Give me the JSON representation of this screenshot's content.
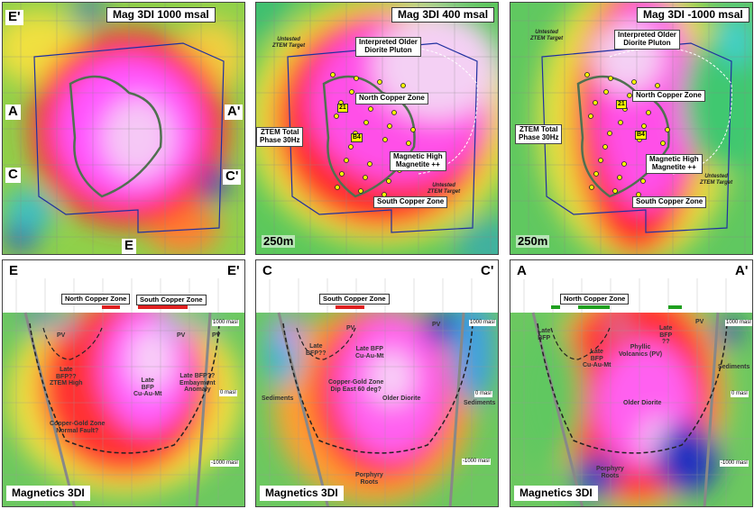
{
  "panels": [
    {
      "labels": [
        "Mag 3DI 1000 msal",
        "E'",
        "A",
        "A'",
        "C",
        "C'",
        "E"
      ]
    },
    {
      "labels": [
        "Mag 3DI 400 msal",
        [
          "Untested",
          "ZTEM Target"
        ],
        [
          "Interpreted Older",
          "Diorite Pluton"
        ],
        "North Copper Zone",
        [
          "ZTEM Total",
          "Phase 30Hz"
        ],
        [
          "Magnetic High",
          "Magnetite ++"
        ],
        [
          "Untested",
          "ZTEM Target"
        ],
        "South Copper Zone",
        "250m",
        "21",
        "B4"
      ]
    },
    {
      "labels": [
        "Mag 3DI -1000 msal",
        [
          "Untested",
          "ZTEM Target"
        ],
        [
          "Interpreted Older",
          "Diorite Pluton"
        ],
        "North Copper Zone",
        [
          "ZTEM Total",
          "Phase 30Hz"
        ],
        [
          "Magnetic High",
          "Magnetite ++"
        ],
        [
          "Untested",
          "ZTEM Target"
        ],
        "South Copper Zone",
        "250m",
        "21",
        "B4"
      ]
    },
    {
      "labels": [
        "E",
        "E'",
        "North Copper Zone",
        "South Copper Zone",
        "1000 masl",
        "0 masl",
        "-1000 masl",
        "PV",
        "PV",
        "PV",
        [
          "Late",
          "BFP??",
          "ZTEM High"
        ],
        [
          "Late",
          "BFP",
          "Cu-Au-Mt"
        ],
        [
          "Late BFP??",
          "Embayment",
          "Anomaly"
        ],
        [
          "Copper-Gold Zone",
          "Normal Fault?"
        ],
        "Magnetics 3DI"
      ]
    },
    {
      "labels": [
        "C",
        "C'",
        "South Copper Zone",
        "1000 masl",
        "0 masl",
        "-1000 masl",
        "PV",
        "PV",
        [
          "Late",
          "BFP??"
        ],
        [
          "Late BFP",
          "Cu-Au-Mt"
        ],
        [
          "Copper-Gold Zone",
          "Dip East 60 deg?"
        ],
        "Older Diorite",
        "Sediments",
        "Sediments",
        [
          "Porphyry",
          "Roots"
        ],
        "Magnetics 3DI"
      ]
    },
    {
      "labels": [
        "A",
        "A'",
        "North Copper Zone",
        "1000 masl",
        "0 masl",
        "-1000 masl",
        [
          "Late",
          "BFP"
        ],
        [
          "Late",
          "BFP",
          "Cu-Au-Mt"
        ],
        [
          "Phyllic",
          "Volcanics (PV)"
        ],
        [
          "Late",
          "BFP",
          "??"
        ],
        "PV",
        "Older Diorite",
        "Sediments",
        [
          "Porphyry",
          "Roots"
        ],
        "Magnetics 3DI"
      ]
    }
  ]
}
